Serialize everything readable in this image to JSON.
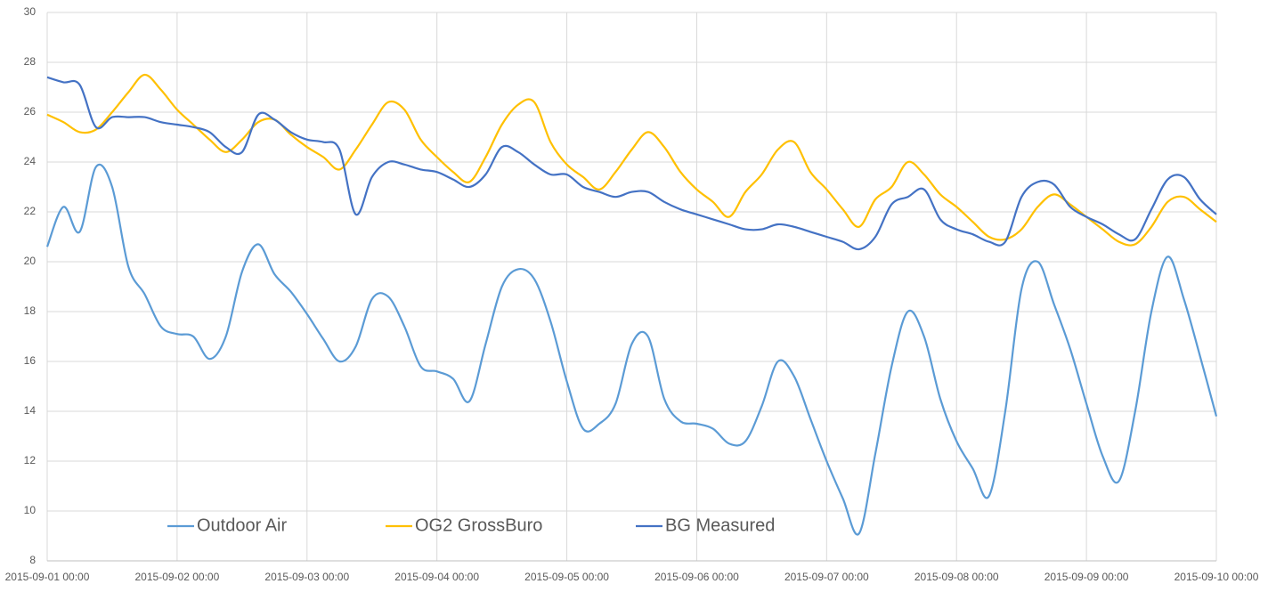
{
  "chart_data": {
    "type": "line",
    "x": [
      "2015-09-01 00:00",
      "2015-09-01 03:00",
      "2015-09-01 06:00",
      "2015-09-01 09:00",
      "2015-09-01 12:00",
      "2015-09-01 15:00",
      "2015-09-01 18:00",
      "2015-09-01 21:00",
      "2015-09-02 00:00",
      "2015-09-02 03:00",
      "2015-09-02 06:00",
      "2015-09-02 09:00",
      "2015-09-02 12:00",
      "2015-09-02 15:00",
      "2015-09-02 18:00",
      "2015-09-02 21:00",
      "2015-09-03 00:00",
      "2015-09-03 03:00",
      "2015-09-03 06:00",
      "2015-09-03 09:00",
      "2015-09-03 12:00",
      "2015-09-03 15:00",
      "2015-09-03 18:00",
      "2015-09-03 21:00",
      "2015-09-04 00:00",
      "2015-09-04 03:00",
      "2015-09-04 06:00",
      "2015-09-04 09:00",
      "2015-09-04 12:00",
      "2015-09-04 15:00",
      "2015-09-04 18:00",
      "2015-09-04 21:00",
      "2015-09-05 00:00",
      "2015-09-05 03:00",
      "2015-09-05 06:00",
      "2015-09-05 09:00",
      "2015-09-05 12:00",
      "2015-09-05 15:00",
      "2015-09-05 18:00",
      "2015-09-05 21:00",
      "2015-09-06 00:00",
      "2015-09-06 03:00",
      "2015-09-06 06:00",
      "2015-09-06 09:00",
      "2015-09-06 12:00",
      "2015-09-06 15:00",
      "2015-09-06 18:00",
      "2015-09-06 21:00",
      "2015-09-07 00:00",
      "2015-09-07 03:00",
      "2015-09-07 06:00",
      "2015-09-07 09:00",
      "2015-09-07 12:00",
      "2015-09-07 15:00",
      "2015-09-07 18:00",
      "2015-09-07 21:00",
      "2015-09-08 00:00",
      "2015-09-08 03:00",
      "2015-09-08 06:00",
      "2015-09-08 09:00",
      "2015-09-08 12:00",
      "2015-09-08 15:00",
      "2015-09-08 18:00",
      "2015-09-08 21:00",
      "2015-09-09 00:00",
      "2015-09-09 03:00",
      "2015-09-09 06:00",
      "2015-09-09 09:00",
      "2015-09-09 12:00",
      "2015-09-09 15:00",
      "2015-09-09 18:00",
      "2015-09-09 21:00",
      "2015-09-10 00:00"
    ],
    "series": [
      {
        "name": "Outdoor Air",
        "color": "#5b9bd5",
        "values": [
          20.6,
          22.2,
          21.2,
          23.8,
          23.0,
          19.8,
          18.7,
          17.4,
          17.1,
          17.0,
          16.1,
          17.0,
          19.6,
          20.7,
          19.5,
          18.8,
          17.9,
          16.9,
          16.0,
          16.6,
          18.5,
          18.6,
          17.4,
          15.8,
          15.6,
          15.3,
          14.4,
          16.7,
          19.0,
          19.7,
          19.3,
          17.6,
          15.2,
          13.3,
          13.5,
          14.3,
          16.7,
          17.0,
          14.5,
          13.6,
          13.5,
          13.3,
          12.7,
          12.8,
          14.2,
          16.0,
          15.4,
          13.7,
          12.0,
          10.5,
          9.1,
          12.3,
          15.8,
          18.0,
          17.0,
          14.5,
          12.8,
          11.7,
          10.6,
          14.0,
          18.9,
          20.0,
          18.3,
          16.5,
          14.3,
          12.2,
          11.2,
          14.0,
          18.0,
          20.2,
          18.5,
          16.2,
          13.8
        ]
      },
      {
        "name": "OG2 GrossBuro",
        "color": "#ffc000",
        "values": [
          25.9,
          25.6,
          25.2,
          25.3,
          26.0,
          26.8,
          27.5,
          26.9,
          26.1,
          25.5,
          24.9,
          24.4,
          24.9,
          25.6,
          25.7,
          25.1,
          24.6,
          24.2,
          23.7,
          24.5,
          25.5,
          26.4,
          26.1,
          24.9,
          24.2,
          23.6,
          23.2,
          24.2,
          25.5,
          26.3,
          26.4,
          24.8,
          23.9,
          23.4,
          22.9,
          23.6,
          24.5,
          25.2,
          24.6,
          23.6,
          22.9,
          22.4,
          21.8,
          22.8,
          23.5,
          24.5,
          24.8,
          23.6,
          22.9,
          22.1,
          21.4,
          22.5,
          23.0,
          24.0,
          23.5,
          22.7,
          22.2,
          21.6,
          21.0,
          20.9,
          21.3,
          22.2,
          22.7,
          22.3,
          21.8,
          21.3,
          20.8,
          20.7,
          21.4,
          22.4,
          22.6,
          22.1,
          21.6
        ]
      },
      {
        "name": "BG Measured",
        "color": "#4472c4",
        "values": [
          27.4,
          27.2,
          27.1,
          25.4,
          25.8,
          25.8,
          25.8,
          25.6,
          25.5,
          25.4,
          25.2,
          24.6,
          24.4,
          25.9,
          25.7,
          25.2,
          24.9,
          24.8,
          24.5,
          21.9,
          23.4,
          24.0,
          23.9,
          23.7,
          23.6,
          23.3,
          23.0,
          23.5,
          24.6,
          24.4,
          23.9,
          23.5,
          23.5,
          23.0,
          22.8,
          22.6,
          22.8,
          22.8,
          22.4,
          22.1,
          21.9,
          21.7,
          21.5,
          21.3,
          21.3,
          21.5,
          21.4,
          21.2,
          21.0,
          20.8,
          20.5,
          21.0,
          22.3,
          22.6,
          22.9,
          21.7,
          21.3,
          21.1,
          20.8,
          20.8,
          22.6,
          23.2,
          23.1,
          22.2,
          21.8,
          21.5,
          21.1,
          20.9,
          22.1,
          23.3,
          23.4,
          22.5,
          21.9
        ]
      }
    ],
    "xlim": [
      "2015-09-01 00:00",
      "2015-09-10 00:00"
    ],
    "xticks": [
      "2015-09-01 00:00",
      "2015-09-02 00:00",
      "2015-09-03 00:00",
      "2015-09-04 00:00",
      "2015-09-05 00:00",
      "2015-09-06 00:00",
      "2015-09-07 00:00",
      "2015-09-08 00:00",
      "2015-09-09 00:00",
      "2015-09-10 00:00"
    ],
    "ylim": [
      8,
      30
    ],
    "yticks": [
      8,
      10,
      12,
      14,
      16,
      18,
      20,
      22,
      24,
      26,
      28,
      30
    ],
    "grid": true,
    "legend": "bottom"
  }
}
